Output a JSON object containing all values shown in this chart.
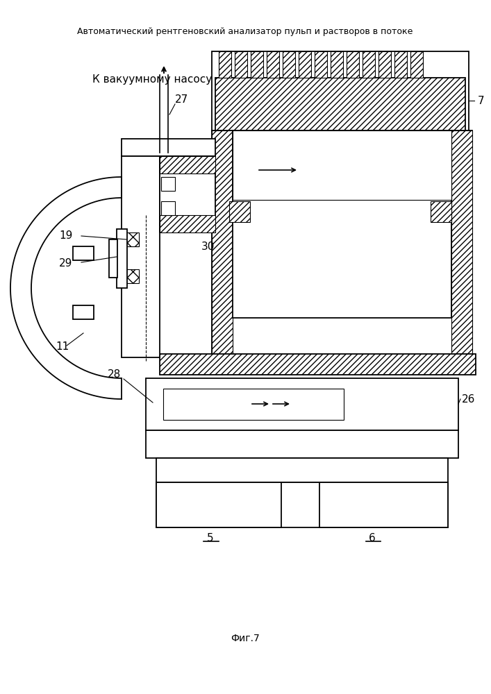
{
  "title": "Автоматический рентгеновский анализатор пульп и растворов в потоке",
  "caption": "Фиг.7",
  "title_fontsize": 9,
  "caption_fontsize": 10,
  "bg_color": "#ffffff",
  "line_color": "#000000",
  "labels": {
    "vacuum": "К вакуумному насосу",
    "7": "7",
    "5": "5",
    "6": "6",
    "11": "11",
    "19": "19",
    "26": "26",
    "27": "27",
    "28": "28",
    "29": "29",
    "30": "30"
  }
}
